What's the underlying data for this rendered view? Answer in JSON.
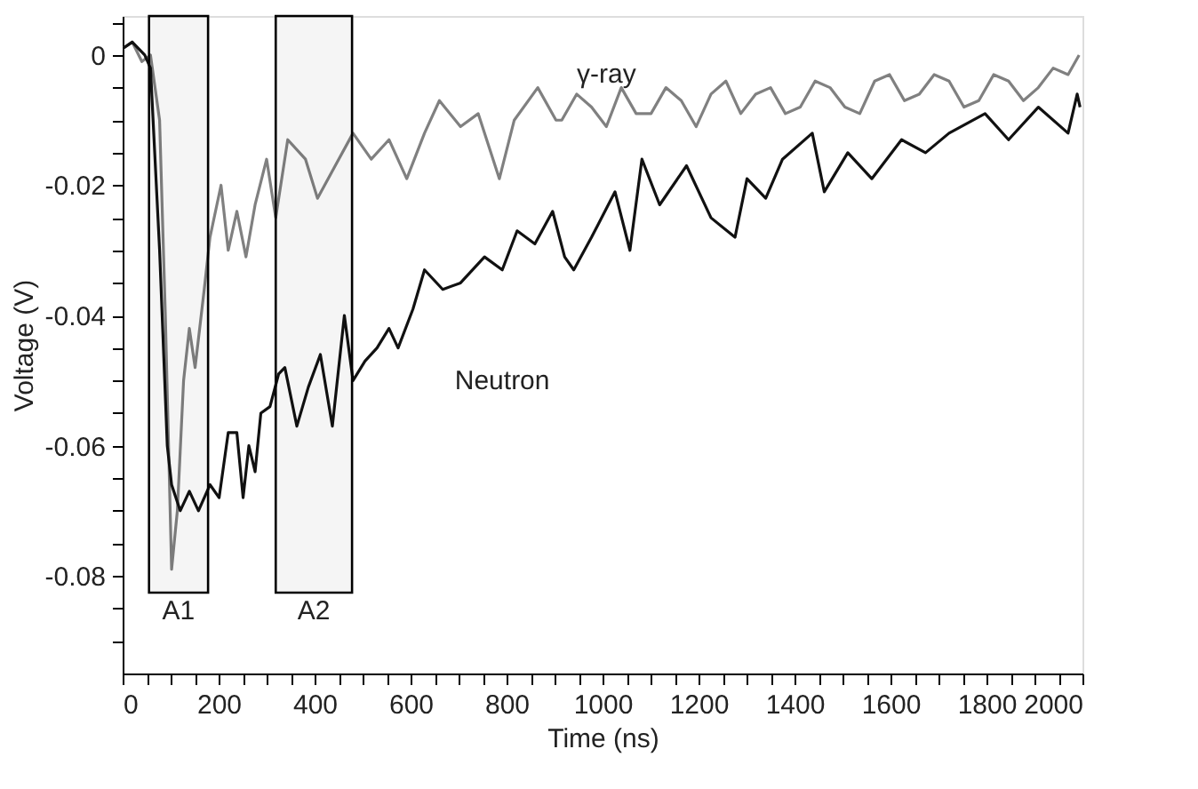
{
  "chart_data": {
    "type": "line",
    "xlabel": "Time (ns)",
    "ylabel": "Voltage (V)",
    "xlim": [
      0,
      2000
    ],
    "ylim": [
      -0.095,
      0.006
    ],
    "xticks": [
      0,
      {
        "value": 50,
        "label": null
      },
      {
        "value": 100,
        "label": null
      },
      {
        "value": 150,
        "label": null
      },
      200,
      {
        "value": 250,
        "label": null
      },
      {
        "value": 300,
        "label": null
      },
      {
        "value": 350,
        "label": null
      },
      400,
      {
        "value": 450,
        "label": null
      },
      {
        "value": 500,
        "label": null
      },
      {
        "value": 550,
        "label": null
      },
      600,
      {
        "value": 650,
        "label": null
      },
      {
        "value": 700,
        "label": null
      },
      {
        "value": 750,
        "label": null
      },
      800,
      {
        "value": 850,
        "label": null
      },
      {
        "value": 900,
        "label": null
      },
      {
        "value": 950,
        "label": null
      },
      1000,
      {
        "value": 1050,
        "label": null
      },
      {
        "value": 1100,
        "label": null
      },
      {
        "value": 1150,
        "label": null
      },
      1200,
      {
        "value": 1250,
        "label": null
      },
      {
        "value": 1300,
        "label": null
      },
      {
        "value": 1350,
        "label": null
      },
      1400,
      {
        "value": 1450,
        "label": null
      },
      {
        "value": 1500,
        "label": null
      },
      {
        "value": 1550,
        "label": null
      },
      1600,
      {
        "value": 1650,
        "label": null
      },
      {
        "value": 1700,
        "label": null
      },
      {
        "value": 1750,
        "label": null
      },
      1800,
      {
        "value": 1850,
        "label": null
      },
      {
        "value": 1900,
        "label": null
      },
      {
        "value": 1950,
        "label": null
      },
      2000
    ],
    "yticks": [
      {
        "value": -0.09,
        "label": null
      },
      {
        "value": -0.085,
        "label": null
      },
      -0.08,
      {
        "value": -0.075,
        "label": null
      },
      {
        "value": -0.07,
        "label": null
      },
      {
        "value": -0.065,
        "label": null
      },
      -0.06,
      {
        "value": -0.055,
        "label": null
      },
      {
        "value": -0.05,
        "label": null
      },
      {
        "value": -0.045,
        "label": null
      },
      -0.04,
      {
        "value": -0.035,
        "label": null
      },
      {
        "value": -0.03,
        "label": null
      },
      {
        "value": -0.025,
        "label": null
      },
      -0.02,
      {
        "value": -0.015,
        "label": null
      },
      {
        "value": -0.01,
        "label": null
      },
      {
        "value": -0.005,
        "label": null
      },
      0,
      {
        "value": 0.005,
        "label": null
      }
    ],
    "grid": false,
    "line_style": "solid",
    "series": [
      {
        "name": "γ-ray",
        "color": "#808080",
        "x": [
          0,
          20,
          40,
          58,
          77,
          89,
          102,
          114,
          127,
          139,
          151,
          170,
          182,
          205,
          220,
          238,
          257,
          276,
          300,
          319,
          344,
          381,
          406,
          443,
          480,
          518,
          555,
          592,
          629,
          660,
          704,
          741,
          785,
          816,
          865,
          903,
          915,
          946,
          977,
          1008,
          1039,
          1070,
          1101,
          1132,
          1164,
          1195,
          1226,
          1257,
          1288,
          1319,
          1350,
          1381,
          1412,
          1443,
          1474,
          1505,
          1536,
          1567,
          1598,
          1629,
          1660,
          1691,
          1722,
          1753,
          1784,
          1815,
          1846,
          1877,
          1908,
          1939,
          1970,
          1993
        ],
        "values": [
          0.001,
          0.002,
          -0.001,
          0.0,
          -0.01,
          -0.04,
          -0.079,
          -0.07,
          -0.05,
          -0.042,
          -0.048,
          -0.036,
          -0.028,
          -0.02,
          -0.03,
          -0.024,
          -0.031,
          -0.023,
          -0.016,
          -0.025,
          -0.013,
          -0.016,
          -0.022,
          -0.017,
          -0.012,
          -0.016,
          -0.013,
          -0.019,
          -0.012,
          -0.007,
          -0.011,
          -0.009,
          -0.019,
          -0.01,
          -0.005,
          -0.01,
          -0.01,
          -0.006,
          -0.008,
          -0.011,
          -0.005,
          -0.009,
          -0.009,
          -0.005,
          -0.007,
          -0.011,
          -0.006,
          -0.004,
          -0.009,
          -0.006,
          -0.005,
          -0.009,
          -0.008,
          -0.004,
          -0.005,
          -0.008,
          -0.009,
          -0.004,
          -0.003,
          -0.007,
          -0.006,
          -0.003,
          -0.004,
          -0.008,
          -0.007,
          -0.003,
          -0.004,
          -0.007,
          -0.005,
          -0.002,
          -0.003,
          0.0
        ]
      },
      {
        "name": "Neutron",
        "color": "#111111",
        "x": [
          0,
          20,
          46,
          58,
          77,
          93,
          102,
          120,
          139,
          158,
          182,
          201,
          220,
          238,
          251,
          263,
          276,
          288,
          307,
          325,
          338,
          363,
          387,
          412,
          437,
          462,
          480,
          505,
          530,
          555,
          574,
          605,
          629,
          667,
          704,
          754,
          791,
          822,
          859,
          896,
          921,
          940,
          977,
          1026,
          1057,
          1082,
          1119,
          1175,
          1226,
          1276,
          1301,
          1340,
          1375,
          1437,
          1462,
          1511,
          1561,
          1623,
          1673,
          1722,
          1797,
          1846,
          1908,
          1970,
          1989,
          1995
        ],
        "values": [
          0.001,
          0.002,
          0.0,
          -0.002,
          -0.03,
          -0.06,
          -0.066,
          -0.07,
          -0.067,
          -0.07,
          -0.066,
          -0.068,
          -0.058,
          -0.058,
          -0.068,
          -0.06,
          -0.064,
          -0.055,
          -0.054,
          -0.049,
          -0.048,
          -0.057,
          -0.051,
          -0.046,
          -0.057,
          -0.04,
          -0.05,
          -0.047,
          -0.045,
          -0.042,
          -0.045,
          -0.039,
          -0.033,
          -0.036,
          -0.035,
          -0.031,
          -0.033,
          -0.027,
          -0.029,
          -0.024,
          -0.031,
          -0.033,
          -0.028,
          -0.021,
          -0.03,
          -0.016,
          -0.023,
          -0.017,
          -0.025,
          -0.028,
          -0.019,
          -0.022,
          -0.016,
          -0.012,
          -0.021,
          -0.015,
          -0.019,
          -0.013,
          -0.015,
          -0.012,
          -0.009,
          -0.013,
          -0.008,
          -0.012,
          -0.006,
          -0.008
        ]
      }
    ],
    "bands": [
      {
        "axis": "x",
        "from": 55,
        "to": 178,
        "label": "A1"
      },
      {
        "axis": "x",
        "from": 319,
        "to": 478,
        "label": "A2"
      }
    ]
  }
}
